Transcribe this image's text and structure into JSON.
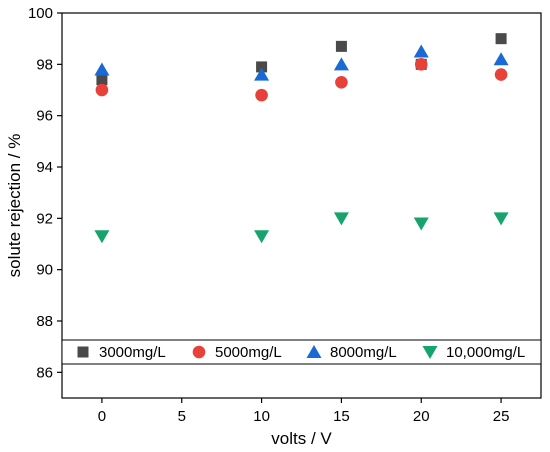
{
  "chart_data": {
    "type": "scatter",
    "xlabel": "volts / V",
    "ylabel": "solute rejection / %",
    "xlim": [
      -2.5,
      27.5
    ],
    "ylim": [
      85,
      100
    ],
    "x_ticks": [
      0,
      5,
      10,
      15,
      20,
      25
    ],
    "y_ticks": [
      86,
      88,
      90,
      92,
      94,
      96,
      98,
      100
    ],
    "grid": false,
    "legend_position": "bottom",
    "series": [
      {
        "name": "3000mg/L",
        "marker": "square",
        "color": "#4a4a4a",
        "x": [
          0,
          10,
          15,
          20,
          25
        ],
        "y": [
          97.4,
          97.9,
          98.7,
          98.0,
          99.0
        ]
      },
      {
        "name": "5000mg/L",
        "marker": "circle",
        "color": "#e8413a",
        "x": [
          0,
          10,
          15,
          20,
          25
        ],
        "y": [
          97.0,
          96.8,
          97.3,
          98.0,
          97.6
        ]
      },
      {
        "name": "8000mg/L",
        "marker": "triangle-up",
        "color": "#1a6ad6",
        "x": [
          0,
          10,
          15,
          20,
          25
        ],
        "y": [
          97.8,
          97.6,
          98.0,
          98.5,
          98.2
        ]
      },
      {
        "name": "10,000mg/L",
        "marker": "triangle-down",
        "color": "#16a36e",
        "x": [
          0,
          10,
          15,
          20,
          25
        ],
        "y": [
          91.3,
          91.3,
          92.0,
          91.8,
          92.0
        ]
      }
    ]
  }
}
